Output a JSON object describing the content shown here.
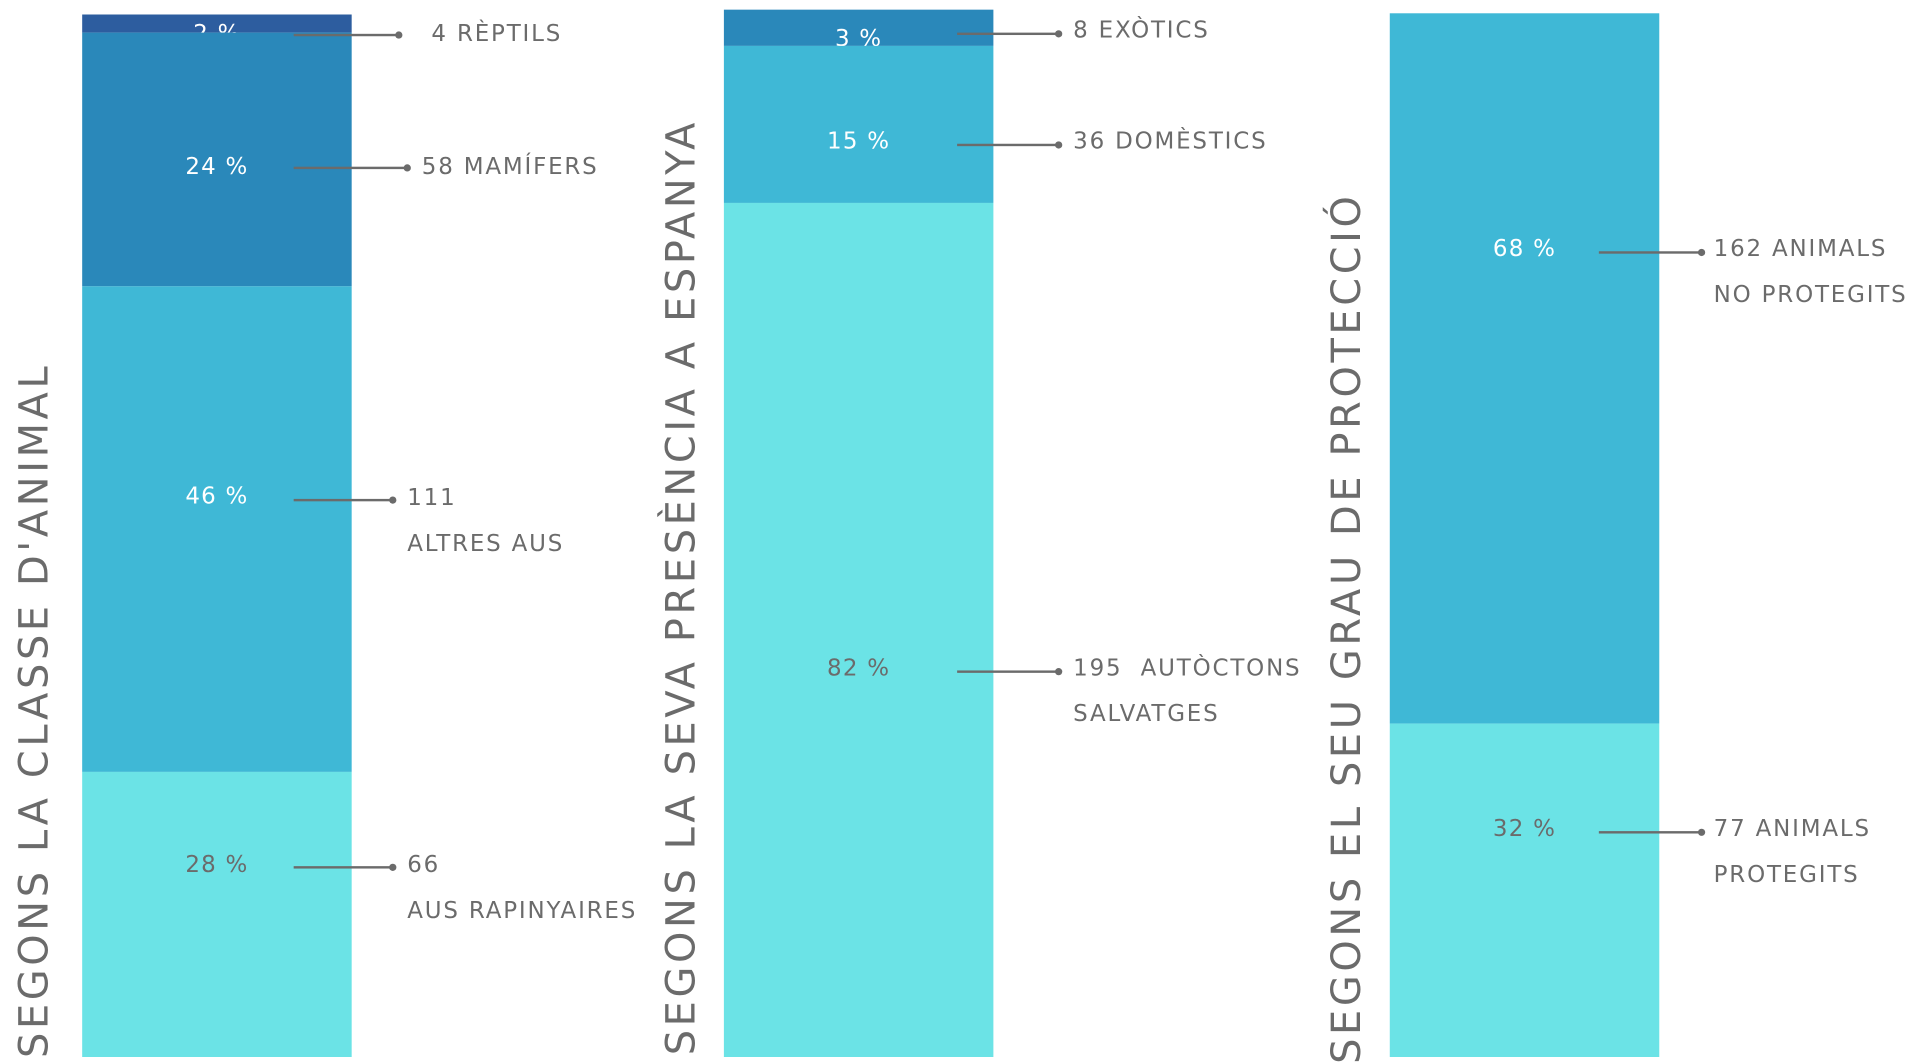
{
  "colors": {
    "darkest": "#2d5d9f",
    "dark": "#2a88ba",
    "mid": "#3fb8d6",
    "light": "#6be3e6",
    "text": "#6b6b6b"
  },
  "chart_data": [
    {
      "type": "bar",
      "title": "SEGONS LA CLASSE D'ANIMAL",
      "segments": [
        {
          "percent_label": "2 %",
          "value": 2,
          "count_label": "4 RÈPTILS"
        },
        {
          "percent_label": "24 %",
          "value": 24,
          "count_label": "58 MAMÍFERS"
        },
        {
          "percent_label": "46 %",
          "value": 46,
          "count_label": "111\nALTRES AUS"
        },
        {
          "percent_label": "28 %",
          "value": 28,
          "count_label": "66\nAUS RAPINYAIRES"
        }
      ]
    },
    {
      "type": "bar",
      "title": "SEGONS LA SEVA PRESÈNCIA A ESPANYA",
      "segments": [
        {
          "percent_label": "3 %",
          "value": 3,
          "count_label": "8 EXÒTICS"
        },
        {
          "percent_label": "15 %",
          "value": 15,
          "count_label": "36 DOMÈSTICS"
        },
        {
          "percent_label": "82 %",
          "value": 82,
          "count_label": "195  AUTÒCTONS\nSALVATGES"
        }
      ]
    },
    {
      "type": "bar",
      "title": "SEGONS EL SEU GRAU DE PROTECCIÓ",
      "segments": [
        {
          "percent_label": "68 %",
          "value": 68,
          "count_label": "162 ANIMALS\nNO PROTEGITS"
        },
        {
          "percent_label": "32 %",
          "value": 32,
          "count_label": "77 ANIMALS\nPROTEGITS"
        }
      ]
    }
  ]
}
